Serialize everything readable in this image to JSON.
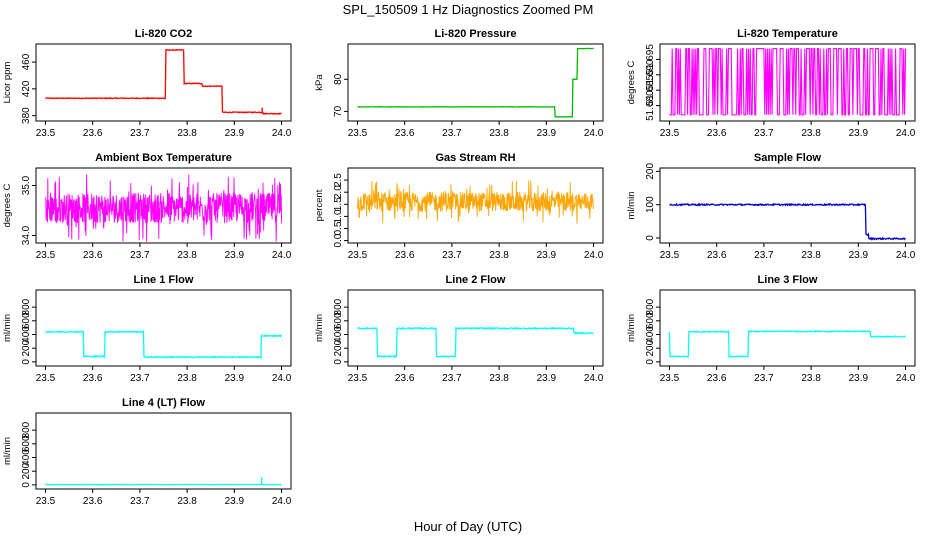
{
  "figure": {
    "title": "SPL_150509  1 Hz Diagnostics Zoomed PM",
    "xlabel": "Hour of Day (UTC)"
  },
  "chart_data": [
    {
      "type": "line",
      "title": "Li-820 CO2",
      "ylabel": "Licor ppm",
      "color": "#ff0000",
      "xlim": [
        23.48,
        24.02
      ],
      "ylim": [
        372,
        487
      ],
      "xticks": [
        23.5,
        23.6,
        23.7,
        23.8,
        23.9,
        24.0
      ],
      "yticks": [
        380,
        420,
        460
      ],
      "ytick_labels": [
        "380",
        "420",
        "460"
      ],
      "noise": 0.6,
      "segments": [
        {
          "x0": 23.5,
          "x1": 23.754,
          "y": 406
        },
        {
          "x0": 23.754,
          "x1": 23.793,
          "y": 478
        },
        {
          "x0": 23.793,
          "x1": 23.832,
          "y": 428
        },
        {
          "x0": 23.832,
          "x1": 23.874,
          "y": 424
        },
        {
          "x0": 23.874,
          "x1": 23.96,
          "y": 385
        },
        {
          "x0": 23.96,
          "x1": 24.0,
          "y": 383
        }
      ],
      "spikes": [
        {
          "x": 23.959,
          "y": 392
        }
      ]
    },
    {
      "type": "line",
      "title": "Li-820 Pressure",
      "ylabel": "kPa",
      "color": "#00bb00",
      "xlim": [
        23.48,
        24.02
      ],
      "ylim": [
        67,
        91
      ],
      "xticks": [
        23.5,
        23.6,
        23.7,
        23.8,
        23.9,
        24.0
      ],
      "yticks": [
        70,
        80
      ],
      "ytick_labels": [
        "70",
        "80"
      ],
      "noise": 0.05,
      "segments": [
        {
          "x0": 23.5,
          "x1": 23.918,
          "y": 71.4
        },
        {
          "x0": 23.918,
          "x1": 23.955,
          "y": 68.3
        },
        {
          "x0": 23.955,
          "x1": 23.965,
          "y": 80
        },
        {
          "x0": 23.965,
          "x1": 24.0,
          "y": 89.6
        }
      ]
    },
    {
      "type": "line",
      "title": "Li-820 Temperature",
      "ylabel": "degrees C",
      "color": "#ff00ff",
      "xlim": [
        23.48,
        24.02
      ],
      "ylim": [
        51.675,
        51.7
      ],
      "xticks": [
        23.5,
        23.6,
        23.7,
        23.8,
        23.9,
        24.0
      ],
      "yticks": [
        51.68,
        51.685,
        51.69,
        51.695
      ],
      "ytick_labels": [
        "51.680",
        "51.685",
        "51.690",
        "51.695"
      ],
      "toggle": [
        51.677,
        51.6985
      ]
    },
    {
      "type": "line",
      "title": "Ambient Box Temperature",
      "ylabel": "degrees C",
      "color": "#ff00ff",
      "xlim": [
        23.48,
        24.02
      ],
      "ylim": [
        33.85,
        35.35
      ],
      "xticks": [
        23.5,
        23.6,
        23.7,
        23.8,
        23.9,
        24.0
      ],
      "yticks": [
        34.0,
        35.0
      ],
      "ytick_labels": [
        "34.0",
        "35.0"
      ],
      "band": [
        33.95,
        35.3
      ],
      "center": 34.55
    },
    {
      "type": "line",
      "title": "Gas Stream RH",
      "ylabel": "percent",
      "color": "#ffa500",
      "xlim": [
        23.48,
        24.02
      ],
      "ylim": [
        -0.1,
        3.0
      ],
      "xticks": [
        23.5,
        23.6,
        23.7,
        23.8,
        23.9,
        24.0
      ],
      "yticks": [
        0.0,
        0.5,
        1.0,
        1.5,
        2.0,
        2.5
      ],
      "ytick_labels": [
        "0.0",
        "0.5",
        "1.0",
        "1.5",
        "2.0",
        "2.5"
      ],
      "band": [
        0.8,
        2.6
      ],
      "center": 1.6
    },
    {
      "type": "line",
      "title": "Sample Flow",
      "ylabel": "ml/min",
      "color": "#0000cc",
      "xlim": [
        23.48,
        24.02
      ],
      "ylim": [
        -15,
        210
      ],
      "xticks": [
        23.5,
        23.6,
        23.7,
        23.8,
        23.9,
        24.0
      ],
      "yticks": [
        0,
        100,
        200
      ],
      "ytick_labels": [
        "0",
        "100",
        "200"
      ],
      "noise": 2,
      "segments": [
        {
          "x0": 23.5,
          "x1": 23.915,
          "y": 100
        },
        {
          "x0": 23.915,
          "x1": 23.922,
          "y": 10
        },
        {
          "x0": 23.922,
          "x1": 24.0,
          "y": -2
        }
      ]
    },
    {
      "type": "line",
      "title": "Line 1 Flow",
      "ylabel": "ml/min",
      "color": "#00ffff",
      "xlim": [
        23.48,
        24.02
      ],
      "ylim": [
        -60,
        1050
      ],
      "xticks": [
        23.5,
        23.6,
        23.7,
        23.8,
        23.9,
        24.0
      ],
      "yticks": [
        0,
        200,
        400,
        600,
        800
      ],
      "ytick_labels": [
        "0",
        "200",
        "400",
        "600",
        "800"
      ],
      "noise": 8,
      "segments": [
        {
          "x0": 23.5,
          "x1": 23.58,
          "y": 440
        },
        {
          "x0": 23.58,
          "x1": 23.625,
          "y": 80
        },
        {
          "x0": 23.625,
          "x1": 23.708,
          "y": 440
        },
        {
          "x0": 23.708,
          "x1": 23.957,
          "y": 70
        },
        {
          "x0": 23.957,
          "x1": 24.0,
          "y": 380
        }
      ]
    },
    {
      "type": "line",
      "title": "Line 2 Flow",
      "ylabel": "ml/min",
      "color": "#00ffff",
      "xlim": [
        23.48,
        24.02
      ],
      "ylim": [
        -60,
        1050
      ],
      "xticks": [
        23.5,
        23.6,
        23.7,
        23.8,
        23.9,
        24.0
      ],
      "yticks": [
        0,
        200,
        400,
        600,
        800
      ],
      "ytick_labels": [
        "0",
        "200",
        "400",
        "600",
        "800"
      ],
      "noise": 8,
      "segments": [
        {
          "x0": 23.5,
          "x1": 23.542,
          "y": 490
        },
        {
          "x0": 23.542,
          "x1": 23.583,
          "y": 80
        },
        {
          "x0": 23.583,
          "x1": 23.667,
          "y": 490
        },
        {
          "x0": 23.667,
          "x1": 23.708,
          "y": 80
        },
        {
          "x0": 23.708,
          "x1": 23.958,
          "y": 490
        },
        {
          "x0": 23.958,
          "x1": 24.0,
          "y": 420
        }
      ]
    },
    {
      "type": "line",
      "title": "Line 3 Flow",
      "ylabel": "ml/min",
      "color": "#00ffff",
      "xlim": [
        23.48,
        24.02
      ],
      "ylim": [
        -60,
        1050
      ],
      "xticks": [
        23.5,
        23.6,
        23.7,
        23.8,
        23.9,
        24.0
      ],
      "yticks": [
        0,
        200,
        400,
        600,
        800
      ],
      "ytick_labels": [
        "0",
        "200",
        "400",
        "600",
        "800"
      ],
      "noise": 6,
      "segments": [
        {
          "x0": 23.5,
          "x1": 23.5,
          "y": 440
        },
        {
          "x0": 23.5,
          "x1": 23.54,
          "y": 80
        },
        {
          "x0": 23.54,
          "x1": 23.625,
          "y": 440
        },
        {
          "x0": 23.625,
          "x1": 23.667,
          "y": 80
        },
        {
          "x0": 23.667,
          "x1": 23.925,
          "y": 445
        },
        {
          "x0": 23.925,
          "x1": 24.0,
          "y": 370
        }
      ]
    },
    {
      "type": "line",
      "title": "Line 4 (LT) Flow",
      "ylabel": "ml/min",
      "color": "#00ffff",
      "xlim": [
        23.48,
        24.02
      ],
      "ylim": [
        -60,
        1050
      ],
      "xticks": [
        23.5,
        23.6,
        23.7,
        23.8,
        23.9,
        24.0
      ],
      "yticks": [
        0,
        200,
        400,
        600,
        800
      ],
      "ytick_labels": [
        "0",
        "200",
        "400",
        "600",
        "800"
      ],
      "noise": 2,
      "segments": [
        {
          "x0": 23.5,
          "x1": 24.0,
          "y": 5
        }
      ],
      "spikes": [
        {
          "x": 23.958,
          "y": 110
        }
      ]
    }
  ]
}
